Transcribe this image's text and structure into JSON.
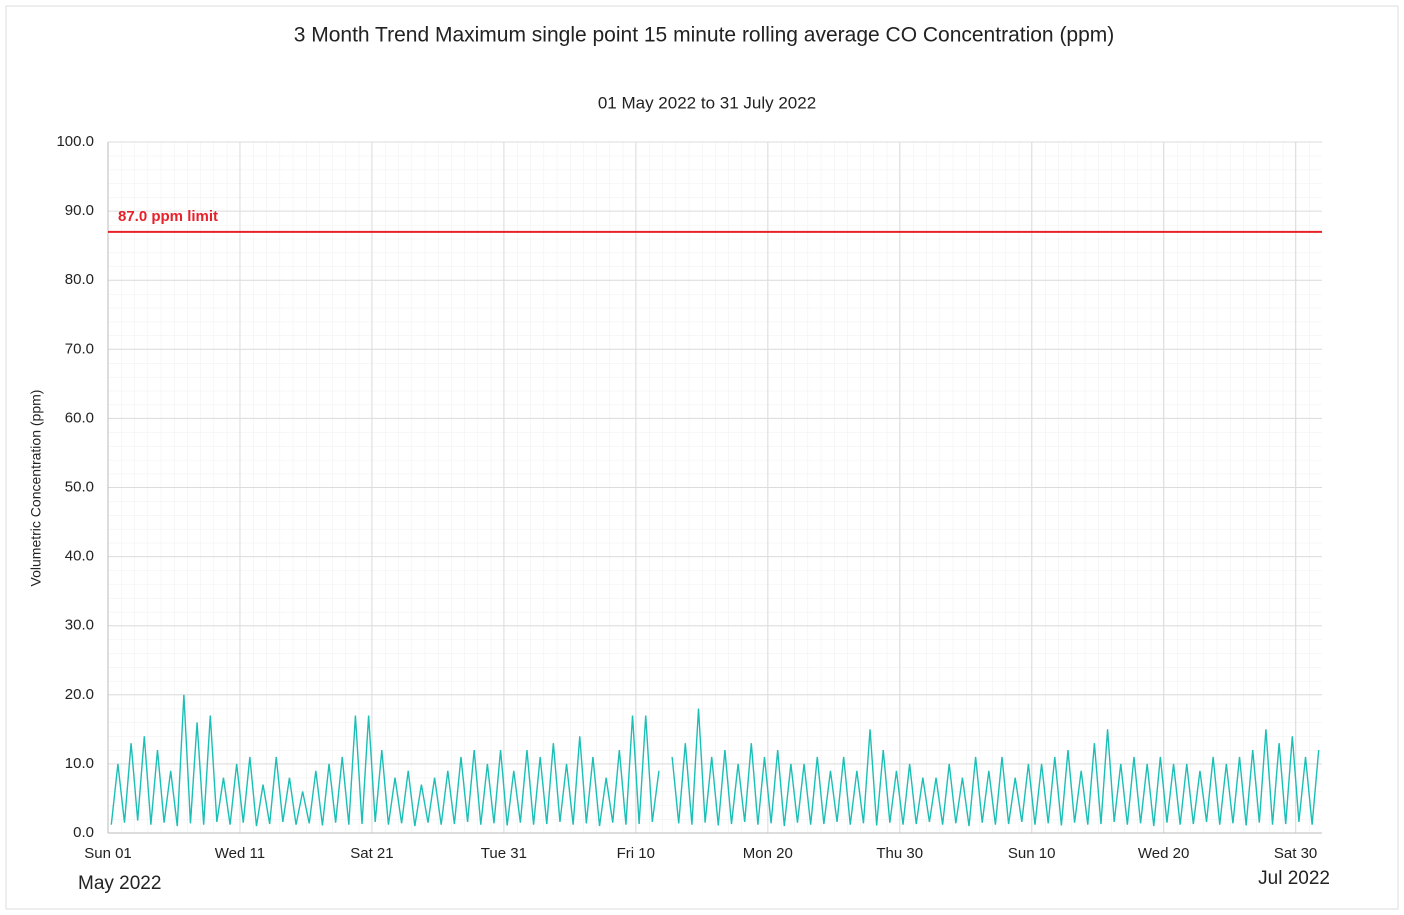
{
  "chart_data": {
    "type": "line",
    "title": "3 Month Trend Maximum single point 15 minute rolling average CO Concentration (ppm)",
    "subtitle": "01 May 2022 to 31 July 2022",
    "y_label": "Volumetric Concentration (ppm)",
    "x_period_labels": [
      "May 2022",
      "Jul 2022"
    ],
    "xlim": [
      "2022-05-01",
      "2022-08-01"
    ],
    "xticks": [
      {
        "value": "2022-05-01",
        "label": "Sun 01"
      },
      {
        "value": "2022-05-11",
        "label": "Wed 11"
      },
      {
        "value": "2022-05-21",
        "label": "Sat 21"
      },
      {
        "value": "2022-05-31",
        "label": "Tue 31"
      },
      {
        "value": "2022-06-10",
        "label": "Fri 10"
      },
      {
        "value": "2022-06-20",
        "label": "Mon 20"
      },
      {
        "value": "2022-06-30",
        "label": "Thu 30"
      },
      {
        "value": "2022-07-10",
        "label": "Sun 10"
      },
      {
        "value": "2022-07-20",
        "label": "Wed 20"
      },
      {
        "value": "2022-07-30",
        "label": "Sat 30"
      }
    ],
    "ylim": [
      0,
      100
    ],
    "yticks": [
      {
        "value": 0,
        "label": "0.0"
      },
      {
        "value": 10,
        "label": "10.0"
      },
      {
        "value": 20,
        "label": "20.0"
      },
      {
        "value": 30,
        "label": "30.0"
      },
      {
        "value": 40,
        "label": "40.0"
      },
      {
        "value": 50,
        "label": "50.0"
      },
      {
        "value": 60,
        "label": "60.0"
      },
      {
        "value": 70,
        "label": "70.0"
      },
      {
        "value": 80,
        "label": "80.0"
      },
      {
        "value": 90,
        "label": "90.0"
      },
      {
        "value": 100,
        "label": "100.0"
      }
    ],
    "grid": true,
    "limit": {
      "value": 87,
      "label": "87.0 ppm limit",
      "color": "#e8202a"
    },
    "series": [
      {
        "name": "CO",
        "color": "#1bbfb5",
        "values": [
          1.2,
          10,
          1.5,
          13,
          1.8,
          14,
          1.2,
          12,
          1.5,
          9,
          1.0,
          20,
          1.4,
          16,
          1.2,
          17,
          1.6,
          8,
          1.2,
          10,
          1.5,
          11,
          1.0,
          7,
          1.3,
          11,
          1.6,
          8,
          1.2,
          6,
          1.4,
          9,
          1.1,
          10,
          1.5,
          11,
          1.2,
          17,
          1.3,
          17,
          1.6,
          12,
          1.2,
          8,
          1.4,
          9,
          1.0,
          7,
          1.5,
          8,
          1.2,
          9,
          1.3,
          11,
          1.6,
          12,
          1.2,
          10,
          1.4,
          12,
          1.1,
          9,
          1.5,
          12,
          1.2,
          11,
          1.3,
          13,
          1.6,
          10,
          1.2,
          14,
          1.4,
          11,
          1.0,
          8,
          1.5,
          12,
          1.2,
          17,
          1.3,
          17,
          1.6,
          9,
          null,
          11,
          1.4,
          13,
          1.2,
          18,
          1.5,
          11,
          1.1,
          12,
          1.3,
          10,
          1.6,
          13,
          1.2,
          11,
          1.4,
          12,
          1.0,
          10,
          1.5,
          10,
          1.2,
          11,
          1.3,
          9,
          1.6,
          11,
          1.2,
          9,
          1.4,
          15,
          1.1,
          12,
          1.5,
          9,
          1.2,
          10,
          1.3,
          8,
          1.6,
          8,
          1.2,
          10,
          1.4,
          8,
          1.0,
          11,
          1.5,
          9,
          1.2,
          11,
          1.3,
          8,
          1.6,
          10,
          1.2,
          10,
          1.4,
          11,
          1.1,
          12,
          1.5,
          9,
          1.2,
          13,
          1.3,
          15,
          1.6,
          10,
          1.2,
          11,
          1.4,
          10,
          1.0,
          11,
          1.5,
          10,
          1.2,
          10,
          1.3,
          9,
          1.6,
          11,
          1.2,
          10,
          1.4,
          11,
          1.1,
          12,
          1.5,
          15,
          1.2,
          13,
          1.3,
          14,
          1.6,
          11,
          1.2,
          12
        ]
      }
    ]
  }
}
